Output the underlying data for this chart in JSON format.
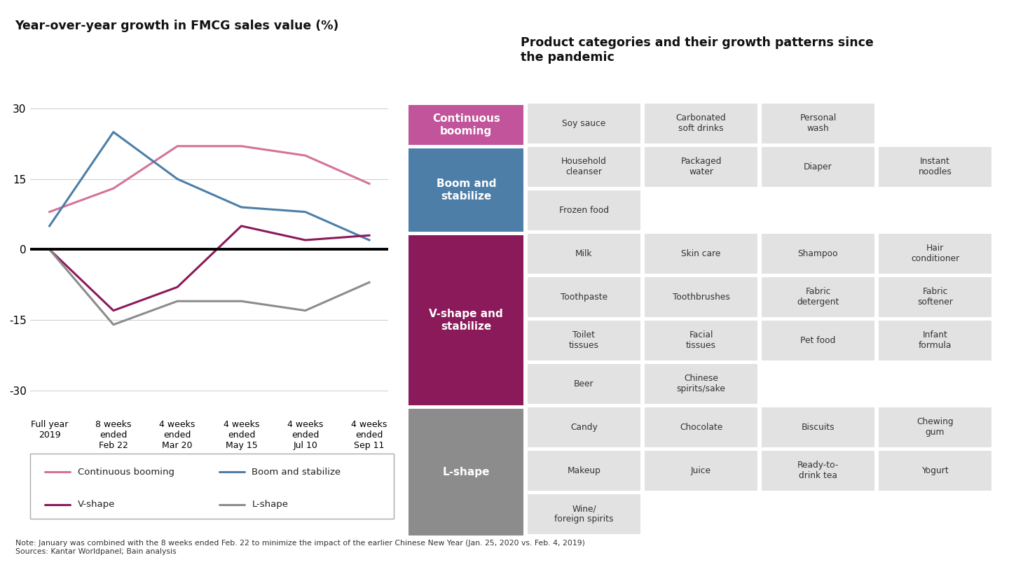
{
  "chart_title": "Year-over-year growth in FMCG sales value (%)",
  "table_title": "Product categories and their growth patterns since\nthe pandemic",
  "x_labels": [
    "Full year\n2019",
    "8 weeks\nended\nFeb 22",
    "4 weeks\nended\nMar 20",
    "4 weeks\nended\nMay 15",
    "4 weeks\nended\nJul 10",
    "4 weeks\nended\nSep 11"
  ],
  "lines": {
    "Continuous booming": {
      "values": [
        8,
        13,
        22,
        22,
        20,
        14
      ],
      "color": "#d4739a"
    },
    "Boom and stabilize": {
      "values": [
        5,
        25,
        15,
        9,
        8,
        2
      ],
      "color": "#4d7ea8"
    },
    "V-shape": {
      "values": [
        0,
        -13,
        -8,
        5,
        2,
        3
      ],
      "color": "#8b1a5a"
    },
    "L-shape": {
      "values": [
        0,
        -16,
        -11,
        -11,
        -13,
        -7
      ],
      "color": "#8c8c8c"
    }
  },
  "yticks": [
    30,
    15,
    0,
    -15,
    -30
  ],
  "ylim": [
    -35,
    35
  ],
  "note": "Note: January was combined with the 8 weeks ended Feb. 22 to minimize the impact of the earlier Chinese New Year (Jan. 25, 2020 vs. Feb. 4, 2019)\nSources: Kantar Worldpanel; Bain analysis",
  "categories": {
    "Continuous\nbooming": {
      "color": "#c1549a",
      "text_color": "#ffffff",
      "n_rows": 1,
      "items": [
        [
          "Soy sauce",
          "Carbonated\nsoft drinks",
          "Personal\nwash",
          ""
        ]
      ]
    },
    "Boom and\nstabilize": {
      "color": "#4d7ea8",
      "text_color": "#ffffff",
      "n_rows": 2,
      "items": [
        [
          "Household\ncleanser",
          "Packaged\nwater",
          "Diaper",
          "Instant\nnoodles"
        ],
        [
          "Frozen food",
          "",
          "",
          ""
        ]
      ]
    },
    "V-shape and\nstabilize": {
      "color": "#8b1a5a",
      "text_color": "#ffffff",
      "n_rows": 4,
      "items": [
        [
          "Milk",
          "Skin care",
          "Shampoo",
          "Hair\nconditioner"
        ],
        [
          "Toothpaste",
          "Toothbrushes",
          "Fabric\ndetergent",
          "Fabric\nsoftener"
        ],
        [
          "Toilet\ntissues",
          "Facial\ntissues",
          "Pet food",
          "Infant\nformula"
        ],
        [
          "Beer",
          "Chinese\nspirits/sake",
          "",
          ""
        ]
      ]
    },
    "L-shape": {
      "color": "#8c8c8c",
      "text_color": "#ffffff",
      "n_rows": 3,
      "items": [
        [
          "Candy",
          "Chocolate",
          "Biscuits",
          "Chewing\ngum"
        ],
        [
          "Makeup",
          "Juice",
          "Ready-to-\ndrink tea",
          "Yogurt"
        ],
        [
          "Wine/\nforeign spirits",
          "",
          "",
          ""
        ]
      ]
    }
  },
  "categories_order": [
    "Continuous\nbooming",
    "Boom and\nstabilize",
    "V-shape and\nstabilize",
    "L-shape"
  ],
  "item_bg_color": "#e2e2e2",
  "item_text_color": "#333333",
  "background_color": "#ffffff"
}
